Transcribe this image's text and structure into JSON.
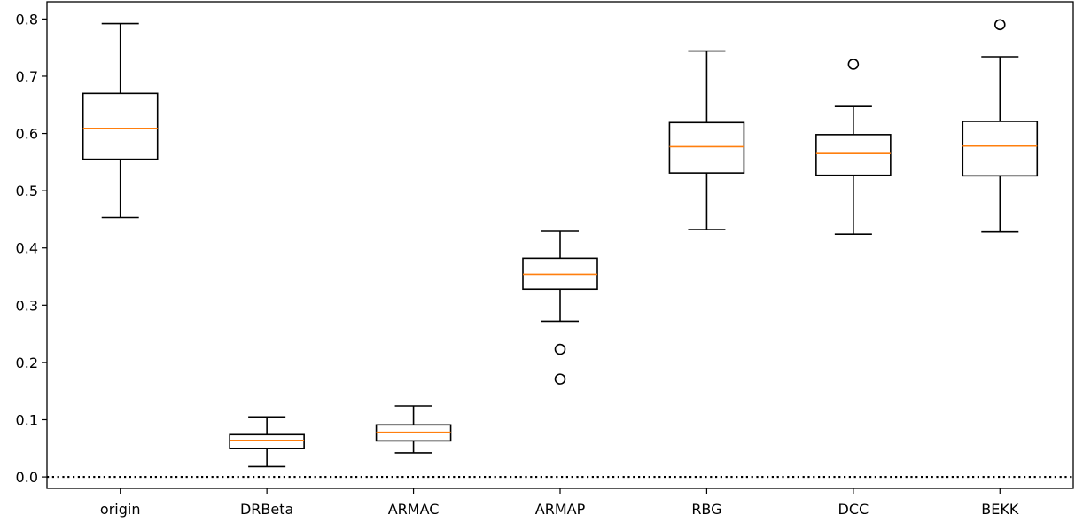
{
  "chart_data": {
    "type": "boxplot",
    "categories": [
      "origin",
      "DRBeta",
      "ARMAC",
      "ARMAP",
      "RBG",
      "DCC",
      "BEKK"
    ],
    "boxes": [
      {
        "label": "origin",
        "whislo": 0.453,
        "q1": 0.555,
        "med": 0.609,
        "q3": 0.67,
        "whishi": 0.792,
        "fliers": []
      },
      {
        "label": "DRBeta",
        "whislo": 0.018,
        "q1": 0.05,
        "med": 0.064,
        "q3": 0.074,
        "whishi": 0.105,
        "fliers": []
      },
      {
        "label": "ARMAC",
        "whislo": 0.042,
        "q1": 0.063,
        "med": 0.078,
        "q3": 0.091,
        "whishi": 0.124,
        "fliers": []
      },
      {
        "label": "ARMAP",
        "whislo": 0.272,
        "q1": 0.328,
        "med": 0.354,
        "q3": 0.382,
        "whishi": 0.429,
        "fliers": [
          0.223,
          0.171
        ]
      },
      {
        "label": "RBG",
        "whislo": 0.432,
        "q1": 0.531,
        "med": 0.577,
        "q3": 0.619,
        "whishi": 0.744,
        "fliers": []
      },
      {
        "label": "DCC",
        "whislo": 0.424,
        "q1": 0.527,
        "med": 0.565,
        "q3": 0.598,
        "whishi": 0.647,
        "fliers": [
          0.721
        ]
      },
      {
        "label": "BEKK",
        "whislo": 0.428,
        "q1": 0.526,
        "med": 0.578,
        "q3": 0.621,
        "whishi": 0.734,
        "fliers": [
          0.79
        ]
      }
    ],
    "yticks": [
      "0.0",
      "0.1",
      "0.2",
      "0.3",
      "0.4",
      "0.5",
      "0.6",
      "0.7",
      "0.8"
    ],
    "ylim": [
      -0.02,
      0.83
    ],
    "reference_line": {
      "y": 0.0,
      "style": "dotted"
    },
    "title": "",
    "xlabel": "",
    "ylabel": "",
    "grid": false,
    "colors": {
      "box": "#000000",
      "median": "#ff7f0e",
      "reference": "#000000"
    }
  }
}
